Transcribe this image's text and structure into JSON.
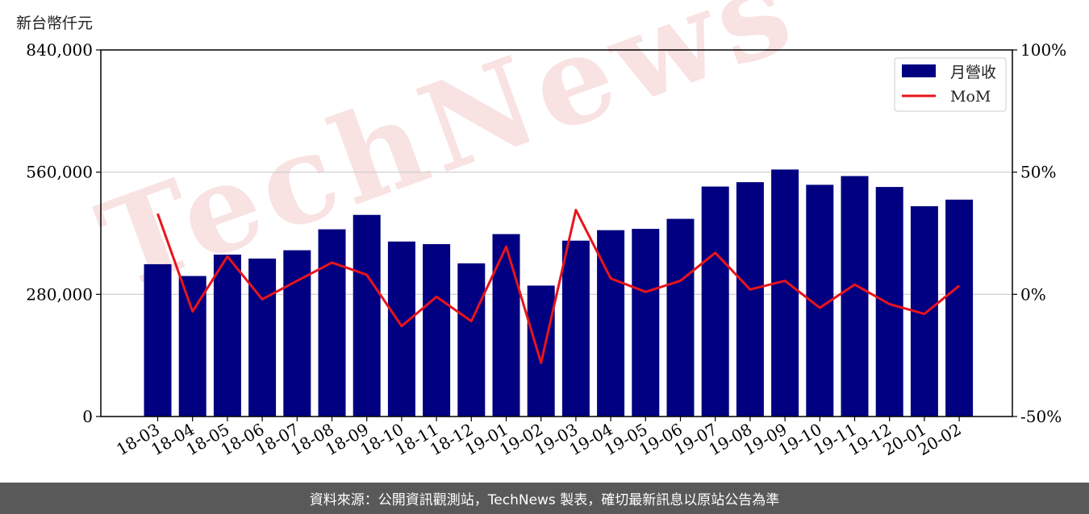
{
  "unit_label": "新台幣仟元",
  "footer_text": "資料來源：公開資訊觀測站，TechNews 製表，確切最新訊息以原站公告為準",
  "watermark": "TechNews",
  "colors": {
    "bar": "#000080",
    "line": "#e8141b",
    "grid": "#cccccc",
    "footer_bg": "#595959",
    "watermark": "#f5d5d5",
    "watermark_gray": "#e6e6e6"
  },
  "chart_data": {
    "type": "bar",
    "categories": [
      "18-03",
      "18-04",
      "18-05",
      "18-06",
      "18-07",
      "18-08",
      "18-09",
      "18-10",
      "18-11",
      "18-12",
      "19-01",
      "19-02",
      "19-03",
      "19-04",
      "19-05",
      "19-06",
      "19-07",
      "19-08",
      "19-09",
      "19-10",
      "19-11",
      "19-12",
      "20-01",
      "20-02"
    ],
    "series": [
      {
        "name": "月營收",
        "type": "bar",
        "axis": "left",
        "values": [
          349000,
          322000,
          371000,
          362000,
          381000,
          429000,
          462000,
          401000,
          395000,
          351000,
          418000,
          300000,
          403000,
          427000,
          430000,
          453000,
          527000,
          537000,
          566000,
          531000,
          551000,
          526000,
          482000,
          497000
        ]
      },
      {
        "name": "MoM",
        "type": "line",
        "axis": "right",
        "values": [
          33,
          -7,
          15.5,
          -2,
          5.5,
          13,
          8,
          -13,
          -1,
          -11,
          19.5,
          -28,
          34.5,
          6.5,
          1,
          5.5,
          17,
          2,
          5.5,
          -5.5,
          4,
          -4,
          -8,
          3.5
        ]
      }
    ],
    "y_left": {
      "lim": [
        0,
        840000
      ],
      "ticks": [
        "0",
        "280,000",
        "560,000",
        "840,000"
      ],
      "tick_values": [
        0,
        280000,
        560000,
        840000
      ]
    },
    "y_right": {
      "lim": [
        -50,
        100
      ],
      "ticks": [
        "-50%",
        "0%",
        "50%",
        "100%"
      ],
      "tick_values": [
        -50,
        0,
        50,
        100
      ]
    },
    "grid": "horizontal",
    "legend": "top-right",
    "title": "",
    "xlabel": "",
    "ylabel": ""
  }
}
